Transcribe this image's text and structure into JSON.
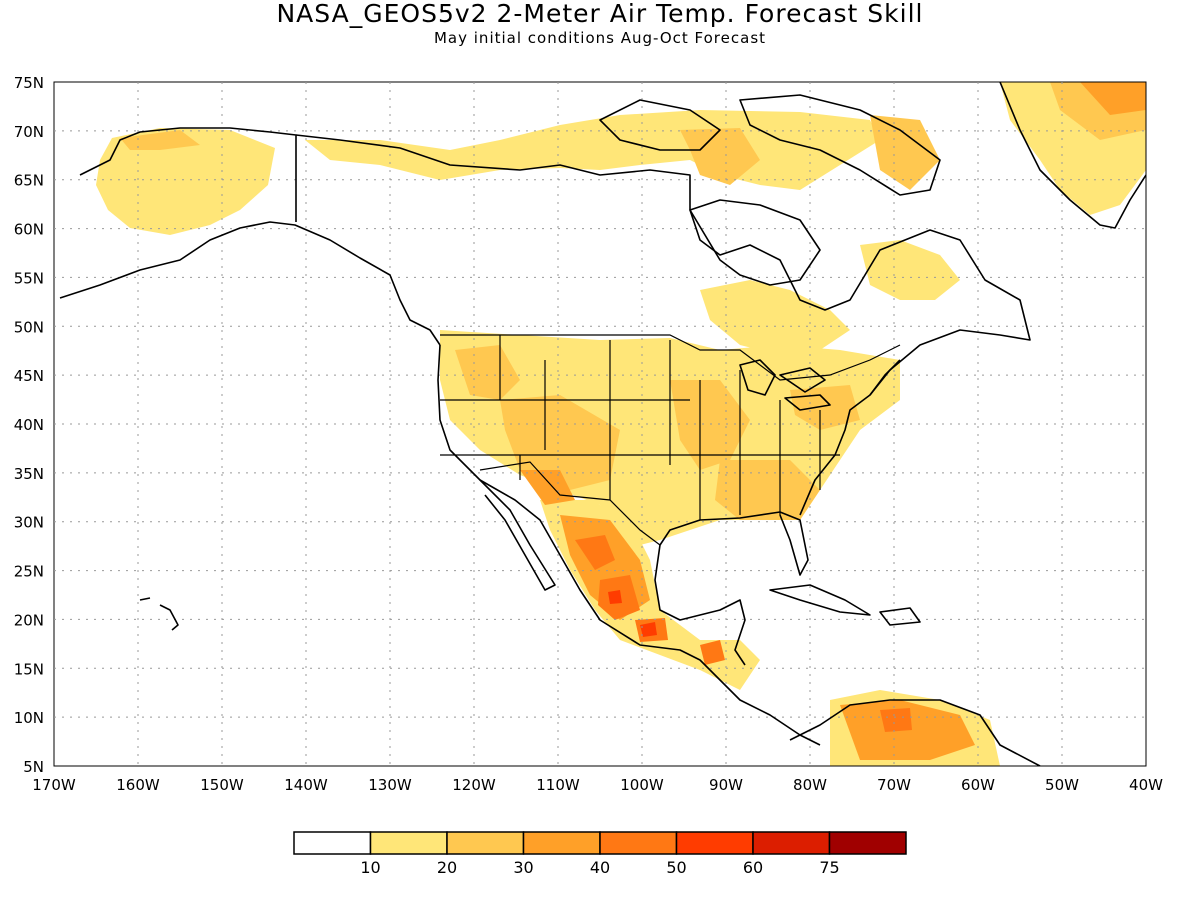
{
  "title": "NASA_GEOS5v2 2-Meter Air Temp. Forecast Skill",
  "subtitle": "May initial conditions  Aug-Oct Forecast",
  "map": {
    "lat_labels": [
      "75N",
      "70N",
      "65N",
      "60N",
      "55N",
      "50N",
      "45N",
      "40N",
      "35N",
      "30N",
      "25N",
      "20N",
      "15N",
      "10N",
      "5N"
    ],
    "lon_labels": [
      "170W",
      "160W",
      "150W",
      "140W",
      "130W",
      "120W",
      "110W",
      "100W",
      "90W",
      "80W",
      "70W",
      "60W",
      "50W",
      "40W"
    ],
    "extent": {
      "lon": [
        -170,
        -40
      ],
      "lat": [
        5,
        75
      ]
    },
    "grid": "dotted"
  },
  "legend": {
    "labels": [
      "10",
      "20",
      "30",
      "40",
      "50",
      "60",
      "75"
    ],
    "colors": [
      "#ffffff",
      "#ffe678",
      "#ffc850",
      "#ffa028",
      "#ff7814",
      "#ff3c00",
      "#dc1e00",
      "#a00000"
    ]
  }
}
